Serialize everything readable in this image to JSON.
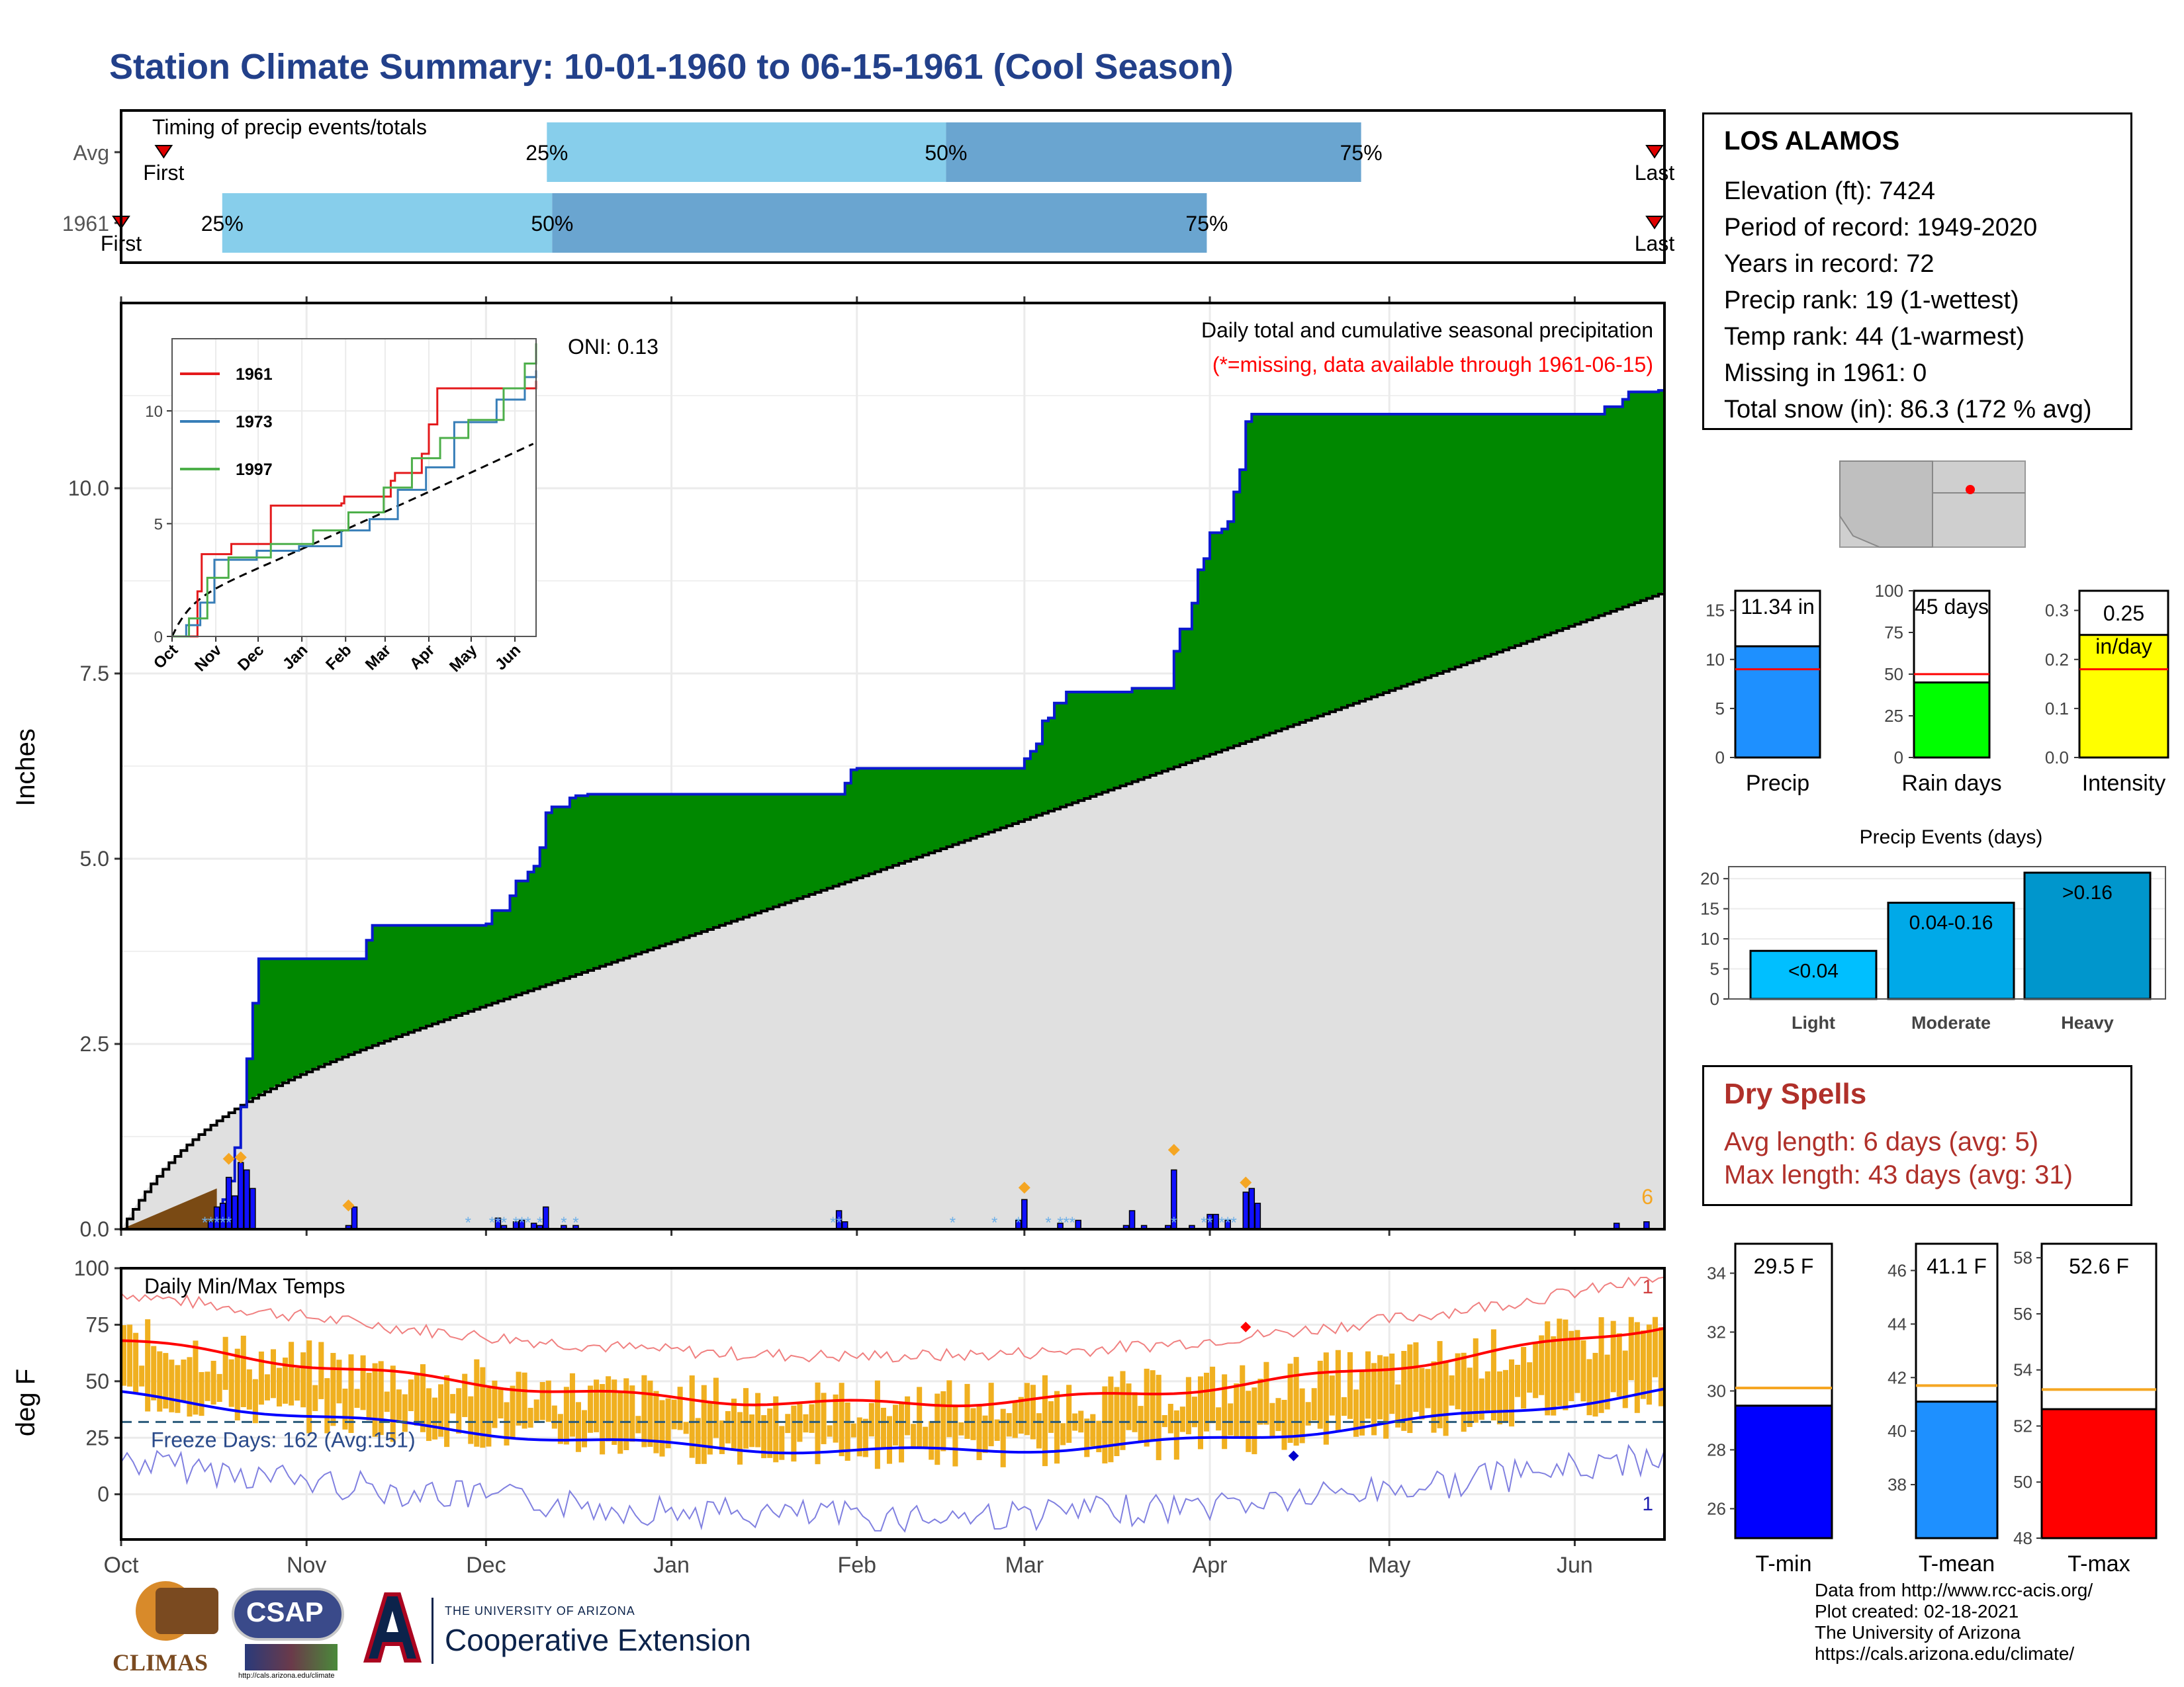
{
  "title": "Station Climate Summary: 10-01-1960 to 06-15-1961 (Cool Season)",
  "timing": {
    "label": "Timing of precip events/totals",
    "rows": [
      {
        "label": "Avg",
        "first_label": "First",
        "last_label": "Last",
        "first_day": 8,
        "p25": 80,
        "p50": 155,
        "p75": 233,
        "last_day": 290
      },
      {
        "label": "1961",
        "first_label": "First",
        "last_label": "Last",
        "first_day": 0,
        "p25": 19,
        "p50": 81,
        "p75": 204,
        "last_day": 290
      }
    ],
    "pct_labels": [
      "25%",
      "50%",
      "75%"
    ]
  },
  "station": {
    "name": "LOS ALAMOS",
    "rows": [
      "Elevation (ft): 7424",
      "Period of record: 1949-2020",
      "Years in record: 72",
      "Precip rank: 19 (1-wettest)",
      "Temp rank: 44 (1-warmest)",
      "Missing in 1961: 0",
      "Total snow (in): 86.3 (172 % avg)"
    ]
  },
  "colors": {
    "title": "#22408a",
    "green": "#008800",
    "gray_fill": "#e0e0e0",
    "blue_line": "#0a18d0",
    "orange": "#f5a623",
    "temp_bar": "#f0b020",
    "tmax_red": "#ff0000",
    "tmin_blue": "#0000ff",
    "light_blue": "#87ceeb",
    "mid_blue": "#6aa5d0",
    "dry_red": "#b0302a"
  },
  "chart_data": [
    {
      "type": "area",
      "ylabel": "Inches",
      "annotation": "Daily total and cumulative seasonal precipitation",
      "note": "(*=missing, data available through 1961-06-15)",
      "oni": "ONI: 0.13",
      "count_label": "6",
      "yticks": [
        0.0,
        2.5,
        5.0,
        7.5,
        10.0
      ],
      "ylim": [
        0,
        12.5
      ],
      "xticks": [
        "Oct",
        "Nov",
        "Dec",
        "Jan",
        "Feb",
        "Mar",
        "Apr",
        "May",
        "Jun"
      ],
      "x_day_ticks": [
        0,
        31,
        61,
        92,
        123,
        151,
        182,
        212,
        243
      ],
      "cumulative_1961_steps": [
        [
          0,
          0
        ],
        [
          16,
          0.05
        ],
        [
          17,
          0.4
        ],
        [
          18,
          0.65
        ],
        [
          19,
          1.1
        ],
        [
          20,
          1.65
        ],
        [
          21,
          2.3
        ],
        [
          22,
          3.05
        ],
        [
          23,
          3.65
        ],
        [
          40,
          3.65
        ],
        [
          41,
          3.9
        ],
        [
          42,
          4.1
        ],
        [
          50,
          4.1
        ],
        [
          61,
          4.12
        ],
        [
          62,
          4.3
        ],
        [
          65,
          4.5
        ],
        [
          66,
          4.7
        ],
        [
          68,
          4.82
        ],
        [
          69,
          4.9
        ],
        [
          70,
          5.15
        ],
        [
          71,
          5.62
        ],
        [
          72,
          5.7
        ],
        [
          75,
          5.82
        ],
        [
          76,
          5.85
        ],
        [
          78,
          5.87
        ],
        [
          120,
          5.87
        ],
        [
          121,
          6.02
        ],
        [
          122,
          6.2
        ],
        [
          123,
          6.22
        ],
        [
          150,
          6.22
        ],
        [
          151,
          6.35
        ],
        [
          152,
          6.45
        ],
        [
          153,
          6.55
        ],
        [
          154,
          6.86
        ],
        [
          155,
          6.9
        ],
        [
          156,
          7.1
        ],
        [
          158,
          7.25
        ],
        [
          168,
          7.25
        ],
        [
          169,
          7.3
        ],
        [
          176,
          7.8
        ],
        [
          177,
          8.1
        ],
        [
          179,
          8.45
        ],
        [
          180,
          8.9
        ],
        [
          181,
          9.05
        ],
        [
          182,
          9.4
        ],
        [
          184,
          9.45
        ],
        [
          185,
          9.55
        ],
        [
          186,
          9.95
        ],
        [
          187,
          10.25
        ],
        [
          188,
          10.9
        ],
        [
          189,
          11.0
        ],
        [
          247,
          11.0
        ],
        [
          248,
          11.1
        ],
        [
          251,
          11.2
        ],
        [
          252,
          11.3
        ],
        [
          257,
          11.32
        ],
        [
          258,
          11.34
        ]
      ],
      "average_end": 8.6,
      "daily_bars": [
        {
          "day": 15,
          "v": 0.1
        },
        {
          "day": 16,
          "v": 0.3
        },
        {
          "day": 17,
          "v": 0.35
        },
        {
          "day": 18,
          "v": 0.7
        },
        {
          "day": 19,
          "v": 0.45
        },
        {
          "day": 20,
          "v": 0.9
        },
        {
          "day": 21,
          "v": 0.8
        },
        {
          "day": 22,
          "v": 0.55
        },
        {
          "day": 38,
          "v": 0.05
        },
        {
          "day": 39,
          "v": 0.3
        },
        {
          "day": 63,
          "v": 0.15
        },
        {
          "day": 64,
          "v": 0.05
        },
        {
          "day": 66,
          "v": 0.1
        },
        {
          "day": 67,
          "v": 0.12
        },
        {
          "day": 69,
          "v": 0.08
        },
        {
          "day": 70,
          "v": 0.05
        },
        {
          "day": 71,
          "v": 0.3
        },
        {
          "day": 74,
          "v": 0.05
        },
        {
          "day": 76,
          "v": 0.05
        },
        {
          "day": 120,
          "v": 0.25
        },
        {
          "day": 121,
          "v": 0.1
        },
        {
          "day": 150,
          "v": 0.12
        },
        {
          "day": 151,
          "v": 0.4
        },
        {
          "day": 157,
          "v": 0.08
        },
        {
          "day": 160,
          "v": 0.12
        },
        {
          "day": 168,
          "v": 0.05
        },
        {
          "day": 169,
          "v": 0.25
        },
        {
          "day": 171,
          "v": 0.05
        },
        {
          "day": 175,
          "v": 0.05
        },
        {
          "day": 176,
          "v": 0.8
        },
        {
          "day": 179,
          "v": 0.05
        },
        {
          "day": 182,
          "v": 0.1
        },
        {
          "day": 182,
          "v": 0.2
        },
        {
          "day": 183,
          "v": 0.12
        },
        {
          "day": 183,
          "v": 0.2
        },
        {
          "day": 185,
          "v": 0.12
        },
        {
          "day": 188,
          "v": 0.5
        },
        {
          "day": 189,
          "v": 0.55
        },
        {
          "day": 190,
          "v": 0.35
        },
        {
          "day": 250,
          "v": 0.08
        },
        {
          "day": 255,
          "v": 0.1
        }
      ],
      "inset": {
        "xticks": [
          "Oct",
          "Nov",
          "Dec",
          "Jan",
          "Feb",
          "Mar",
          "Apr",
          "May",
          "Jun"
        ],
        "yticks": [
          0,
          5,
          10
        ],
        "series": [
          {
            "name": "1961",
            "color": "#e41a1c",
            "steps": [
              [
                0,
                0
              ],
              [
                16,
                0
              ],
              [
                18,
                2
              ],
              [
                21,
                3.65
              ],
              [
                40,
                3.65
              ],
              [
                42,
                4.1
              ],
              [
                61,
                4.1
              ],
              [
                70,
                5.8
              ],
              [
                120,
                5.9
              ],
              [
                122,
                6.2
              ],
              [
                150,
                6.2
              ],
              [
                155,
                6.9
              ],
              [
                158,
                7.25
              ],
              [
                168,
                7.25
              ],
              [
                177,
                8.1
              ],
              [
                182,
                9.4
              ],
              [
                188,
                11.0
              ],
              [
                247,
                11.0
              ],
              [
                258,
                11.34
              ]
            ]
          },
          {
            "name": "1973",
            "color": "#377eb8",
            "steps": [
              [
                0,
                0
              ],
              [
                10,
                0.5
              ],
              [
                20,
                1.5
              ],
              [
                30,
                3.4
              ],
              [
                60,
                3.8
              ],
              [
                90,
                4.0
              ],
              [
                120,
                4.7
              ],
              [
                140,
                5.2
              ],
              [
                160,
                6.5
              ],
              [
                180,
                7.5
              ],
              [
                200,
                9.5
              ],
              [
                230,
                10.5
              ],
              [
                250,
                11.5
              ],
              [
                258,
                11.8
              ]
            ]
          },
          {
            "name": "1997",
            "color": "#4daf4a",
            "steps": [
              [
                0,
                0
              ],
              [
                12,
                0.8
              ],
              [
                25,
                2.6
              ],
              [
                40,
                3.5
              ],
              [
                70,
                4.1
              ],
              [
                100,
                4.7
              ],
              [
                125,
                5.5
              ],
              [
                150,
                6.6
              ],
              [
                170,
                7.9
              ],
              [
                190,
                8.8
              ],
              [
                210,
                9.6
              ],
              [
                235,
                11.0
              ],
              [
                250,
                12.1
              ],
              [
                258,
                13.0
              ]
            ]
          }
        ]
      }
    },
    {
      "type": "line",
      "ylabel": "deg F",
      "title": "Daily Min/Max Temps",
      "freeze_label": "Freeze Days: 162 (Avg:151)",
      "top_right_label": "1",
      "bottom_right_label": "1",
      "yticks": [
        0,
        25,
        50,
        75,
        100
      ],
      "ylim": [
        -20,
        100
      ],
      "freeze_line": 32
    },
    {
      "type": "bar",
      "categories": [
        "Precip",
        "Rain days",
        "Intensity"
      ],
      "values": [
        11.34,
        45,
        0.25
      ],
      "labels": [
        "11.34 in",
        "45 days",
        "0.25 in/day"
      ],
      "avg_lines": [
        9.0,
        50,
        0.18
      ],
      "ylims": [
        [
          0,
          17
        ],
        [
          0,
          100
        ],
        [
          0,
          0.34
        ]
      ],
      "yticks": [
        [
          0,
          5,
          10,
          15
        ],
        [
          0,
          25,
          50,
          75,
          100
        ],
        [
          0.0,
          0.1,
          0.2,
          0.3
        ]
      ],
      "colors": [
        "#1e90ff",
        "#00ff00",
        "#ffff00"
      ]
    },
    {
      "type": "bar",
      "title": "Precip Events (days)",
      "categories": [
        "Light",
        "Moderate",
        "Heavy"
      ],
      "values": [
        8,
        16,
        21
      ],
      "bar_labels": [
        "<0.04",
        "0.04-0.16",
        ">0.16"
      ],
      "yticks": [
        0,
        5,
        10,
        15,
        20
      ],
      "ylim": [
        0,
        22
      ],
      "colors": [
        "#00bfff",
        "#00a9e8",
        "#0096cc"
      ]
    },
    {
      "type": "bar",
      "categories": [
        "T-min",
        "T-mean",
        "T-max"
      ],
      "values": [
        29.5,
        41.1,
        52.6
      ],
      "labels": [
        "29.5 F",
        "41.1 F",
        "52.6 F"
      ],
      "avg_lines": [
        30.1,
        41.7,
        53.3
      ],
      "ylims": [
        [
          25,
          35
        ],
        [
          36,
          47
        ],
        [
          48,
          58.5
        ]
      ],
      "yticks": [
        [
          26,
          28,
          30,
          32,
          34
        ],
        [
          38,
          40,
          42,
          44,
          46
        ],
        [
          48,
          50,
          52,
          54,
          56,
          58
        ]
      ],
      "colors": [
        "#0000ff",
        "#1e90ff",
        "#ff0000"
      ]
    }
  ],
  "dry_spells": {
    "title": "Dry Spells",
    "avg_length": "Avg length: 6 days (avg: 5)",
    "max_length": "Max length: 43 days (avg: 31)"
  },
  "credits": [
    "Data from http://www.rcc-acis.org/",
    "Plot created: 02-18-2021",
    "The University of Arizona",
    "https://cals.arizona.edu/climate/"
  ],
  "logos": {
    "climas": "CLIMAS",
    "csap": "CSAP",
    "csap_url": "http://cals.arizona.edu/climate",
    "ua_small": "THE UNIVERSITY OF ARIZONA",
    "ua_big": "Cooperative Extension"
  }
}
